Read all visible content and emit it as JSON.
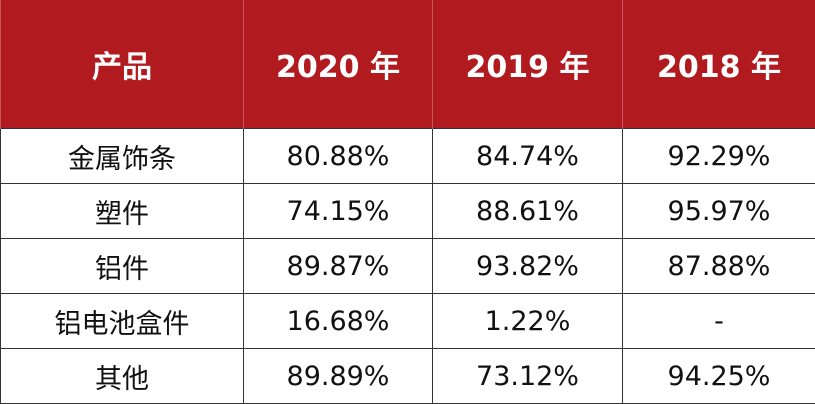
{
  "table": {
    "header": [
      "产品",
      "2020 年",
      "2019 年",
      "2018 年"
    ],
    "rows": [
      [
        "金属饰条",
        "80.88%",
        "84.74%",
        "92.29%"
      ],
      [
        "塑件",
        "74.15%",
        "88.61%",
        "95.97%"
      ],
      [
        "铝件",
        "89.87%",
        "93.82%",
        "87.88%"
      ],
      [
        "铝电池盒件",
        "16.68%",
        "1.22%",
        "-"
      ],
      [
        "其他",
        "89.89%",
        "73.12%",
        "94.25%"
      ]
    ]
  }
}
